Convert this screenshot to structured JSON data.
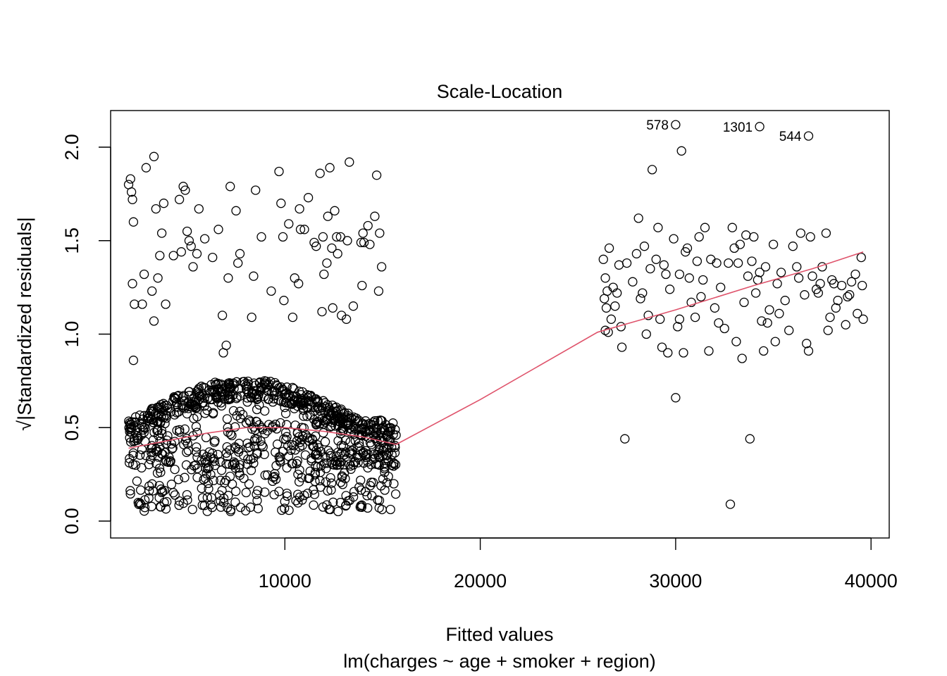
{
  "chart_data": {
    "type": "scatter",
    "title": "Scale-Location",
    "xlabel": "Fitted values",
    "subtitle": "lm(charges ~ age + smoker + region)",
    "ylabel": "√|Standardized residuals|",
    "xlim": [
      0,
      40000
    ],
    "ylim": [
      0.0,
      2.2
    ],
    "x_ticks": [
      "10000",
      "20000",
      "30000",
      "40000"
    ],
    "x_tick_values": [
      10000,
      20000,
      30000,
      40000
    ],
    "y_ticks": [
      "0.0",
      "0.5",
      "1.0",
      "1.5",
      "2.0"
    ],
    "y_tick_values": [
      0.0,
      0.5,
      1.0,
      1.5,
      2.0
    ],
    "point_style": "open circle",
    "smoother_color": "#DF536B",
    "labeled_points": [
      {
        "label": "578",
        "x": 30000,
        "y": 2.12
      },
      {
        "label": "1301",
        "x": 34300,
        "y": 2.11
      },
      {
        "label": "544",
        "x": 36800,
        "y": 2.06
      }
    ],
    "smoother": [
      [
        2000,
        0.39
      ],
      [
        4000,
        0.43
      ],
      [
        6000,
        0.47
      ],
      [
        8000,
        0.5
      ],
      [
        10000,
        0.5
      ],
      [
        12000,
        0.48
      ],
      [
        14000,
        0.45
      ],
      [
        15700,
        0.41
      ],
      [
        20000,
        0.65
      ],
      [
        26000,
        1.01
      ],
      [
        30000,
        1.13
      ],
      [
        34000,
        1.26
      ],
      [
        37000,
        1.35
      ],
      [
        39600,
        1.44
      ]
    ],
    "outlier_points": [
      [
        2000,
        1.8
      ],
      [
        2100,
        1.83
      ],
      [
        2150,
        1.76
      ],
      [
        2200,
        1.72
      ],
      [
        2250,
        1.6
      ],
      [
        2200,
        1.27
      ],
      [
        2300,
        1.16
      ],
      [
        2250,
        0.86
      ],
      [
        2800,
        1.32
      ],
      [
        2700,
        1.16
      ],
      [
        2900,
        1.89
      ],
      [
        3300,
        1.95
      ],
      [
        3400,
        1.67
      ],
      [
        3500,
        1.3
      ],
      [
        3600,
        1.42
      ],
      [
        3700,
        1.54
      ],
      [
        3800,
        1.7
      ],
      [
        3900,
        1.16
      ],
      [
        3300,
        1.07
      ],
      [
        3200,
        1.23
      ],
      [
        4300,
        1.42
      ],
      [
        4700,
        1.44
      ],
      [
        4600,
        1.72
      ],
      [
        4800,
        1.79
      ],
      [
        4900,
        1.77
      ],
      [
        5000,
        1.55
      ],
      [
        5100,
        1.5
      ],
      [
        5200,
        1.47
      ],
      [
        5300,
        1.36
      ],
      [
        5500,
        1.43
      ],
      [
        5600,
        1.67
      ],
      [
        5900,
        1.51
      ],
      [
        6300,
        1.41
      ],
      [
        6600,
        1.56
      ],
      [
        6800,
        1.1
      ],
      [
        6850,
        0.9
      ],
      [
        7000,
        0.94
      ],
      [
        7100,
        1.3
      ],
      [
        7200,
        1.79
      ],
      [
        7500,
        1.66
      ],
      [
        7600,
        1.38
      ],
      [
        7700,
        1.43
      ],
      [
        8400,
        1.31
      ],
      [
        8500,
        1.77
      ],
      [
        8300,
        1.09
      ],
      [
        8800,
        1.52
      ],
      [
        9300,
        1.23
      ],
      [
        9700,
        1.87
      ],
      [
        9800,
        1.7
      ],
      [
        9900,
        1.52
      ],
      [
        9950,
        1.18
      ],
      [
        10200,
        1.59
      ],
      [
        10400,
        1.09
      ],
      [
        10500,
        1.3
      ],
      [
        10700,
        1.27
      ],
      [
        10750,
        1.67
      ],
      [
        10800,
        1.56
      ],
      [
        11000,
        1.56
      ],
      [
        11200,
        1.73
      ],
      [
        11500,
        1.49
      ],
      [
        11600,
        1.47
      ],
      [
        11800,
        1.86
      ],
      [
        11900,
        1.12
      ],
      [
        11950,
        1.52
      ],
      [
        12000,
        1.32
      ],
      [
        12150,
        1.38
      ],
      [
        12200,
        1.63
      ],
      [
        12300,
        1.89
      ],
      [
        12400,
        1.46
      ],
      [
        12450,
        1.14
      ],
      [
        12550,
        1.66
      ],
      [
        12650,
        1.52
      ],
      [
        12700,
        1.43
      ],
      [
        12850,
        1.52
      ],
      [
        12900,
        1.1
      ],
      [
        13150,
        1.08
      ],
      [
        13200,
        1.5
      ],
      [
        13300,
        1.92
      ],
      [
        13500,
        1.15
      ],
      [
        14000,
        1.54
      ],
      [
        14050,
        1.49
      ],
      [
        14250,
        1.58
      ],
      [
        14350,
        1.48
      ],
      [
        14600,
        1.63
      ],
      [
        14700,
        1.85
      ],
      [
        14800,
        1.23
      ],
      [
        14850,
        1.54
      ],
      [
        14950,
        1.36
      ],
      [
        13950,
        1.26
      ],
      [
        13900,
        1.49
      ],
      [
        26300,
        1.4
      ],
      [
        26400,
        1.3
      ],
      [
        26500,
        1.23
      ],
      [
        26350,
        1.19
      ],
      [
        26450,
        1.14
      ],
      [
        26600,
        1.46
      ],
      [
        26700,
        1.08
      ],
      [
        26550,
        1.01
      ],
      [
        26800,
        1.25
      ],
      [
        26900,
        1.15
      ],
      [
        27100,
        1.37
      ],
      [
        27200,
        1.04
      ],
      [
        27250,
        0.93
      ],
      [
        27500,
        1.38
      ],
      [
        27800,
        1.28
      ],
      [
        28000,
        1.43
      ],
      [
        28100,
        1.62
      ],
      [
        28200,
        1.19
      ],
      [
        28300,
        1.22
      ],
      [
        28400,
        1.47
      ],
      [
        28500,
        1.0
      ],
      [
        28700,
        1.35
      ],
      [
        28800,
        1.88
      ],
      [
        29000,
        1.4
      ],
      [
        29100,
        1.57
      ],
      [
        29200,
        1.08
      ],
      [
        29300,
        0.93
      ],
      [
        29500,
        1.32
      ],
      [
        29600,
        0.9
      ],
      [
        29700,
        1.24
      ],
      [
        29900,
        1.51
      ],
      [
        30000,
        0.66
      ],
      [
        30100,
        1.04
      ],
      [
        30200,
        1.32
      ],
      [
        30300,
        1.98
      ],
      [
        30400,
        0.9
      ],
      [
        30500,
        1.44
      ],
      [
        30600,
        1.46
      ],
      [
        30700,
        1.3
      ],
      [
        30800,
        1.17
      ],
      [
        31000,
        1.09
      ],
      [
        31100,
        1.39
      ],
      [
        31200,
        1.52
      ],
      [
        31300,
        1.2
      ],
      [
        31500,
        1.57
      ],
      [
        31700,
        0.91
      ],
      [
        31800,
        1.4
      ],
      [
        32000,
        1.14
      ],
      [
        32100,
        1.38
      ],
      [
        32300,
        1.25
      ],
      [
        32500,
        1.03
      ],
      [
        32700,
        1.38
      ],
      [
        32800,
        0.09
      ],
      [
        32900,
        1.57
      ],
      [
        33000,
        1.46
      ],
      [
        33100,
        0.96
      ],
      [
        33300,
        1.48
      ],
      [
        33400,
        0.87
      ],
      [
        33500,
        1.17
      ],
      [
        33600,
        1.53
      ],
      [
        33700,
        1.31
      ],
      [
        33800,
        0.44
      ],
      [
        33900,
        1.39
      ],
      [
        34000,
        1.52
      ],
      [
        34100,
        1.22
      ],
      [
        34300,
        1.33
      ],
      [
        34400,
        1.07
      ],
      [
        34500,
        0.91
      ],
      [
        34600,
        1.36
      ],
      [
        34700,
        1.06
      ],
      [
        34800,
        1.13
      ],
      [
        35000,
        1.48
      ],
      [
        35100,
        0.96
      ],
      [
        35200,
        1.27
      ],
      [
        35400,
        1.33
      ],
      [
        35600,
        1.18
      ],
      [
        35800,
        1.02
      ],
      [
        36000,
        1.47
      ],
      [
        36200,
        1.36
      ],
      [
        36400,
        1.54
      ],
      [
        36600,
        1.21
      ],
      [
        36700,
        0.95
      ],
      [
        36800,
        0.91
      ],
      [
        36900,
        1.52
      ],
      [
        37000,
        1.31
      ],
      [
        37200,
        1.24
      ],
      [
        37400,
        1.27
      ],
      [
        37500,
        1.36
      ],
      [
        37700,
        1.54
      ],
      [
        37800,
        1.02
      ],
      [
        37900,
        1.09
      ],
      [
        38000,
        1.29
      ],
      [
        38200,
        1.14
      ],
      [
        38300,
        1.18
      ],
      [
        38500,
        1.26
      ],
      [
        38700,
        1.05
      ],
      [
        38900,
        1.21
      ],
      [
        39000,
        1.28
      ],
      [
        39200,
        1.32
      ],
      [
        39300,
        1.11
      ],
      [
        39500,
        1.41
      ],
      [
        39550,
        1.26
      ],
      [
        39600,
        1.08
      ],
      [
        26400,
        1.02
      ],
      [
        27000,
        1.22
      ],
      [
        27400,
        0.44
      ],
      [
        28600,
        1.1
      ],
      [
        29400,
        1.37
      ],
      [
        30200,
        1.08
      ],
      [
        31400,
        1.29
      ],
      [
        32200,
        1.06
      ],
      [
        33200,
        1.38
      ],
      [
        34200,
        1.29
      ],
      [
        35300,
        1.11
      ],
      [
        36300,
        1.3
      ],
      [
        37300,
        1.22
      ],
      [
        38100,
        1.27
      ],
      [
        38800,
        1.2
      ]
    ],
    "cluster_fill": "dense band of ~1000 points for fitted values 2000–15700, residuals roughly 0.05–0.75"
  }
}
